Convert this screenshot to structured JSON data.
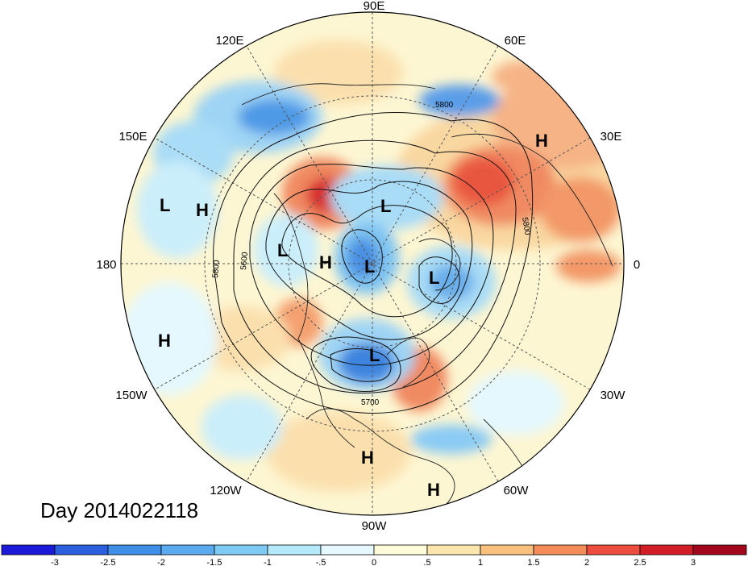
{
  "title": "Day 2014022118",
  "longitude_labels": [
    "90E",
    "60E",
    "30E",
    "0",
    "30W",
    "60W",
    "90W",
    "120W",
    "150W",
    "180",
    "150E",
    "120E"
  ],
  "contour_labels": [
    "5800",
    "5800",
    "5800",
    "5600",
    "5700"
  ],
  "pressure_centers": [
    "L",
    "H",
    "L",
    "L",
    "H",
    "L",
    "L",
    "H",
    "L",
    "H",
    "H",
    "H"
  ],
  "colorbar": {
    "tick_labels": [
      "-3",
      "-2.5",
      "-2",
      "-1.5",
      "-1",
      "-.5",
      "0",
      ".5",
      "1",
      "1.5",
      "2",
      "2.5",
      "3"
    ],
    "colors": [
      "#1a1ad8",
      "#2a5fe0",
      "#3f8ee8",
      "#5aaaf0",
      "#7fcaf5",
      "#b4e8fb",
      "#e4f8fe",
      "#fefbd8",
      "#fde6ae",
      "#f9c07e",
      "#f48c5a",
      "#ec4d3e",
      "#d21d26",
      "#a2071c"
    ]
  }
}
